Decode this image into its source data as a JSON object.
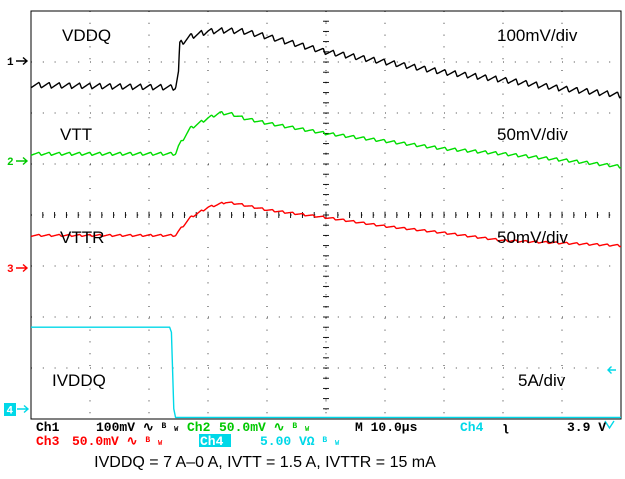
{
  "chart_data": {
    "type": "line",
    "title": "",
    "xlabel": "",
    "ylabel": "",
    "grid": true,
    "x_divisions": 10,
    "y_divisions": 8,
    "x_unit": "µs",
    "x_range": [
      0,
      100
    ],
    "series": [
      {
        "name": "VDDQ",
        "scale_label": "100mV/div",
        "channel": 1,
        "color": "#000000",
        "ripple": 0.11,
        "points": [
          [
            0,
            6.55
          ],
          [
            24.5,
            6.5
          ],
          [
            25,
            6.8
          ],
          [
            25.2,
            7.35
          ],
          [
            27,
            7.5
          ],
          [
            30,
            7.6
          ],
          [
            33,
            7.62
          ],
          [
            36,
            7.6
          ],
          [
            40,
            7.5
          ],
          [
            45,
            7.35
          ],
          [
            50,
            7.2
          ],
          [
            60,
            7.0
          ],
          [
            70,
            6.8
          ],
          [
            80,
            6.65
          ],
          [
            90,
            6.48
          ],
          [
            100,
            6.35
          ]
        ]
      },
      {
        "name": "VTT",
        "scale_label": "50mV/div",
        "channel": 2,
        "color": "#00dd00",
        "ripple": 0.06,
        "points": [
          [
            0,
            5.2
          ],
          [
            24.5,
            5.2
          ],
          [
            25,
            5.35
          ],
          [
            27,
            5.7
          ],
          [
            30,
            5.9
          ],
          [
            32,
            6.0
          ],
          [
            34,
            5.98
          ],
          [
            36,
            5.9
          ],
          [
            40,
            5.8
          ],
          [
            50,
            5.6
          ],
          [
            60,
            5.45
          ],
          [
            70,
            5.3
          ],
          [
            80,
            5.2
          ],
          [
            90,
            5.08
          ],
          [
            100,
            4.95
          ]
        ]
      },
      {
        "name": "VTTR",
        "scale_label": "50mV/div",
        "channel": 3,
        "color": "#ff0000",
        "ripple": 0.04,
        "points": [
          [
            0,
            3.6
          ],
          [
            24.5,
            3.6
          ],
          [
            25,
            3.68
          ],
          [
            27,
            3.95
          ],
          [
            30,
            4.15
          ],
          [
            33,
            4.25
          ],
          [
            35,
            4.22
          ],
          [
            40,
            4.1
          ],
          [
            50,
            3.95
          ],
          [
            60,
            3.78
          ],
          [
            70,
            3.65
          ],
          [
            80,
            3.5
          ],
          [
            90,
            3.45
          ],
          [
            100,
            3.4
          ]
        ]
      },
      {
        "name": "IVDDQ",
        "scale_label": "5A/div",
        "channel": 4,
        "color": "#00d8e8",
        "ripple": 0,
        "points": [
          [
            0,
            1.8
          ],
          [
            23.5,
            1.8
          ],
          [
            23.8,
            1.7
          ],
          [
            24.2,
            0.2
          ],
          [
            24.5,
            0.03
          ],
          [
            100,
            0.03
          ]
        ]
      }
    ],
    "channel_markers": [
      "1",
      "2",
      "3",
      "4"
    ]
  },
  "statusbar": {
    "ch1": "Ch1",
    "ch1_scale": "100mV",
    "ch1_sym": "∿",
    "ch1_bw": "B",
    "ch1_bw_sub": "W",
    "ch2": "Ch2",
    "ch2_scale": "50.0mV",
    "ch2_sym": "∿",
    "ch2_bw": "B",
    "ch2_bw_sub": "W",
    "timebase": "M 10.0µs",
    "trig_ch": "Ch4",
    "trig_slope": "ʅ",
    "trig_level": "3.9 V",
    "ch3": "Ch3",
    "ch3_scale": "50.0mV",
    "ch3_sym": "∿",
    "ch3_bw": "B",
    "ch3_bw_sub": "W",
    "ch4": "Ch4",
    "ch4_scale": "5.00 VΩ",
    "ch4_bw": "B",
    "ch4_bw_sub": "W"
  },
  "caption": "IVDDQ = 7 A–0 A, IVTT = 1.5 A, IVTTR = 15 mA"
}
